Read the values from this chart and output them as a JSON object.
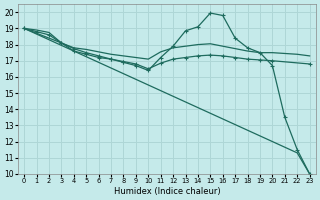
{
  "xlabel": "Humidex (Indice chaleur)",
  "xlim": [
    -0.5,
    23.5
  ],
  "ylim": [
    10,
    20.5
  ],
  "xticks": [
    0,
    1,
    2,
    3,
    4,
    5,
    6,
    7,
    8,
    9,
    10,
    11,
    12,
    13,
    14,
    15,
    16,
    17,
    18,
    19,
    20,
    21,
    22,
    23
  ],
  "yticks": [
    10,
    11,
    12,
    13,
    14,
    15,
    16,
    17,
    18,
    19,
    20
  ],
  "bg_color": "#c5eaea",
  "grid_color": "#aed6d6",
  "line_color": "#1e6b5e",
  "line1_x": [
    0,
    1,
    2,
    3,
    4,
    5,
    6,
    7,
    8,
    9,
    10,
    11,
    12,
    13,
    14,
    15,
    16,
    17,
    18,
    19,
    20,
    21,
    22,
    23
  ],
  "line1_y": [
    19.0,
    18.65,
    18.3,
    17.95,
    17.6,
    17.25,
    16.9,
    16.55,
    16.2,
    15.85,
    15.5,
    15.15,
    14.8,
    14.45,
    14.1,
    13.75,
    13.4,
    13.05,
    12.7,
    12.35,
    12.0,
    11.65,
    11.3,
    10.0
  ],
  "line2_x": [
    0,
    1,
    2,
    3,
    4,
    5,
    6,
    7,
    8,
    9,
    10,
    11,
    12,
    13,
    14,
    15,
    16,
    17,
    18,
    19,
    20,
    21,
    22,
    23
  ],
  "line2_y": [
    19.0,
    18.8,
    18.6,
    18.1,
    17.6,
    17.4,
    17.2,
    17.1,
    16.9,
    16.7,
    16.4,
    17.2,
    17.9,
    18.85,
    19.1,
    19.95,
    19.8,
    18.4,
    17.8,
    17.5,
    16.7,
    13.5,
    11.5,
    10.0
  ],
  "line3_x": [
    0,
    1,
    2,
    3,
    4,
    5,
    6,
    7,
    8,
    9,
    10,
    11,
    12,
    13,
    14,
    15,
    16,
    17,
    18,
    19,
    20,
    21,
    22,
    23
  ],
  "line3_y": [
    19.0,
    18.9,
    18.75,
    18.1,
    17.8,
    17.7,
    17.55,
    17.4,
    17.3,
    17.2,
    17.1,
    17.55,
    17.8,
    17.9,
    18.0,
    18.05,
    17.9,
    17.75,
    17.6,
    17.5,
    17.5,
    17.45,
    17.4,
    17.3
  ],
  "line4_x": [
    0,
    3,
    4,
    5,
    6,
    7,
    8,
    9,
    10,
    11,
    12,
    13,
    14,
    15,
    16,
    17,
    18,
    19,
    20,
    23
  ],
  "line4_y": [
    19.0,
    18.1,
    17.75,
    17.5,
    17.3,
    17.1,
    16.95,
    16.8,
    16.5,
    16.85,
    17.1,
    17.2,
    17.3,
    17.35,
    17.3,
    17.2,
    17.1,
    17.05,
    17.0,
    16.8
  ]
}
